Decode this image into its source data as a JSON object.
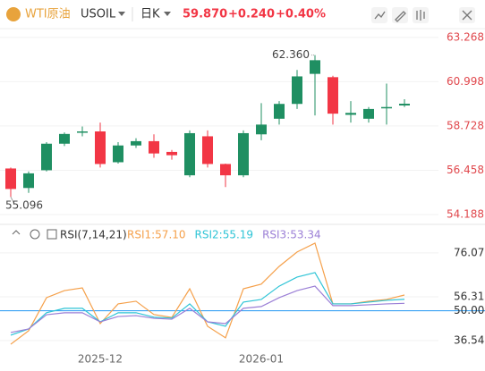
{
  "header": {
    "symbol_name": "WTI原油",
    "symbol": "USOIL",
    "period": "日K",
    "price": "59.870",
    "change": "+0.240",
    "change_pct": "+0.40%"
  },
  "chart_data": [
    {
      "type": "candlestick",
      "open": [
        56.55,
        55.55,
        56.46,
        57.82,
        58.4,
        58.45,
        56.87,
        57.73,
        57.95,
        57.4,
        56.2,
        58.2,
        56.78,
        56.2,
        58.3,
        59.1,
        59.86,
        61.4,
        61.23,
        59.3,
        59.1,
        59.65,
        59.78
      ],
      "high": [
        56.6,
        56.4,
        57.9,
        58.4,
        58.7,
        58.9,
        57.9,
        58.1,
        58.3,
        57.5,
        58.5,
        58.5,
        56.8,
        58.5,
        59.9,
        60.0,
        61.6,
        62.36,
        61.3,
        60.0,
        59.7,
        60.9,
        60.1
      ],
      "low": [
        55.096,
        55.3,
        56.4,
        57.7,
        58.2,
        56.6,
        56.8,
        57.6,
        57.1,
        57.0,
        56.1,
        56.6,
        55.6,
        56.1,
        58.0,
        58.8,
        59.6,
        59.27,
        58.8,
        58.9,
        58.9,
        58.8,
        59.7
      ],
      "close": [
        55.5,
        56.3,
        57.82,
        58.32,
        58.45,
        56.78,
        57.73,
        57.95,
        57.32,
        57.23,
        58.36,
        56.78,
        56.2,
        58.36,
        58.8,
        59.86,
        61.27,
        62.1,
        59.36,
        59.4,
        59.6,
        59.7,
        59.87
      ],
      "up_color": "#1f8f62",
      "down_color": "#f23645",
      "ylim": [
        53.73,
        63.72
      ],
      "yticks": [
        54.188,
        56.458,
        58.728,
        60.998,
        63.268
      ],
      "grid": true,
      "annotations": [
        {
          "label": "62.360",
          "value": 62.36
        },
        {
          "label": "55.096",
          "value": 55.096
        }
      ]
    },
    {
      "type": "line",
      "indicator": "RSI(7,14,21)",
      "categories": [
        null,
        null,
        null,
        null,
        null,
        "2025-12",
        null,
        null,
        null,
        null,
        null,
        null,
        null,
        null,
        "2026-01",
        null,
        null,
        null,
        null,
        null,
        null,
        null,
        null
      ],
      "series": [
        {
          "name": "RSI1:57.10",
          "color": "#f5a04a",
          "values": [
            34.9,
            41.0,
            55.9,
            59.1,
            60.3,
            44.2,
            53.1,
            54.3,
            48.3,
            47.0,
            59.9,
            43.0,
            37.8,
            59.9,
            62.0,
            70.0,
            76.5,
            80.5,
            53.1,
            53.1,
            54.3,
            55.1,
            57.1
          ]
        },
        {
          "name": "RSI2:55.19",
          "color": "#2ec4d6",
          "values": [
            39.0,
            41.8,
            49.1,
            51.1,
            51.1,
            45.0,
            49.1,
            49.1,
            47.1,
            46.7,
            53.1,
            45.0,
            43.0,
            53.9,
            55.1,
            61.1,
            65.2,
            67.2,
            53.1,
            53.1,
            53.9,
            54.7,
            55.19
          ]
        },
        {
          "name": "RSI3:53.34",
          "color": "#9b7fd6",
          "values": [
            40.2,
            41.8,
            48.2,
            49.1,
            49.1,
            45.0,
            47.4,
            47.8,
            46.6,
            46.2,
            51.1,
            45.0,
            44.2,
            51.1,
            51.9,
            55.9,
            59.1,
            61.1,
            52.3,
            52.3,
            52.7,
            53.1,
            53.34
          ]
        }
      ],
      "ylim": [
        30.9,
        83.3
      ],
      "yticks": [
        36.54,
        {
          "value": 50,
          "label": "50.00",
          "line_color": "#2196f3"
        },
        56.31,
        76.07
      ]
    }
  ]
}
